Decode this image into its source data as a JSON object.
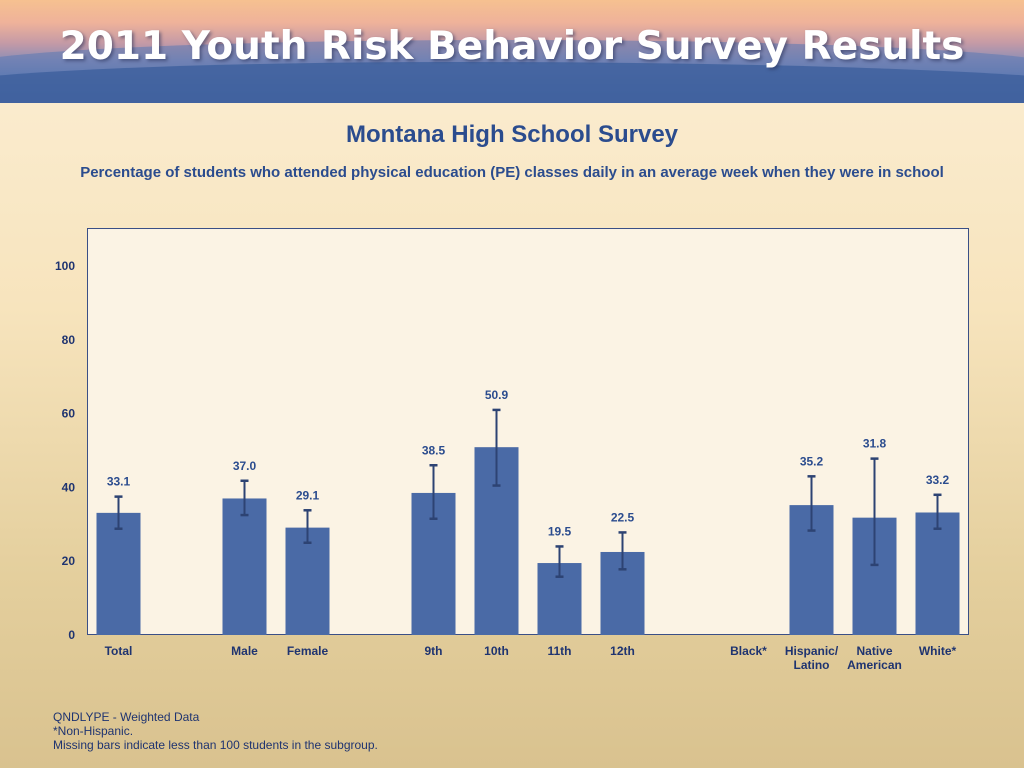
{
  "header": {
    "title": "2011 Youth Risk Behavior Survey Results"
  },
  "chart_data": {
    "type": "bar",
    "title": "Montana High School Survey",
    "subtitle": "Percentage of students who attended physical education (PE) classes daily in an average week when they were in school",
    "xlabel": "",
    "ylabel": "",
    "ylim": [
      0,
      110
    ],
    "yticks": [
      0,
      20,
      40,
      60,
      80,
      100
    ],
    "grid": false,
    "colors": {
      "bar": "#4a6aa6",
      "error_bar": "#2d4373",
      "axis_text": "#1f3470",
      "data_label": "#2b4c8e"
    },
    "categories": [
      "Total",
      "Male",
      "Female",
      "9th",
      "10th",
      "11th",
      "12th",
      "Black*",
      "Hispanic/\nLatino",
      "Native\nAmerican",
      "White*"
    ],
    "values": [
      33.1,
      37.0,
      29.1,
      38.5,
      50.9,
      19.5,
      22.5,
      null,
      35.2,
      31.8,
      33.2
    ],
    "error_low": [
      28.8,
      32.5,
      25.0,
      31.5,
      40.5,
      15.8,
      17.8,
      null,
      28.3,
      19.0,
      28.8
    ],
    "error_high": [
      37.5,
      41.8,
      33.8,
      46.0,
      61.0,
      24.0,
      27.8,
      null,
      43.0,
      47.8,
      38.0
    ],
    "slots": [
      0,
      2,
      3,
      5,
      6,
      7,
      8,
      10,
      11,
      12,
      13
    ],
    "slot_count": 14
  },
  "footnotes": {
    "line1": "QNDLYPE - Weighted Data",
    "line2": "*Non-Hispanic.",
    "line3": "Missing bars indicate less than 100 students in the subgroup."
  }
}
